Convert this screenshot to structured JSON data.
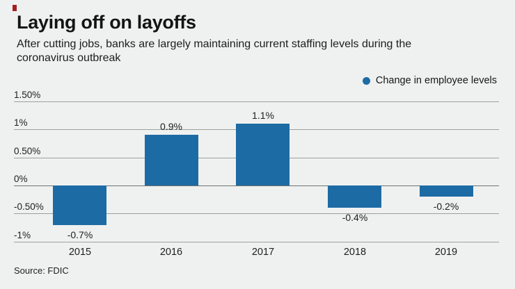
{
  "accent_color": "#a51d20",
  "header": {
    "title": "Laying off on layoffs",
    "subtitle": "After cutting jobs, banks are largely maintaining current staffing levels during the coronavirus outbreak",
    "subtitle_lines": [
      "After cutting jobs, banks are largely maintaining current staffing levels during the",
      "coronavirus outbreak"
    ]
  },
  "legend": {
    "label": "Change in employee levels",
    "marker_color": "#1d6ba5"
  },
  "chart_data": {
    "type": "bar",
    "title": "Laying off on layoffs",
    "categories": [
      "2015",
      "2016",
      "2017",
      "2018",
      "2019"
    ],
    "values": [
      -0.7,
      0.9,
      1.1,
      -0.4,
      -0.2
    ],
    "value_labels": [
      "-0.7%",
      "0.9%",
      "1.1%",
      "-0.4%",
      "-0.2%"
    ],
    "series_name": "Change in employee levels",
    "bar_color": "#1d6ba5",
    "xlabel": "",
    "ylabel": "",
    "y_axis": {
      "ticks": [
        1.5,
        1.0,
        0.5,
        0,
        -0.5,
        -1.0
      ],
      "tick_labels": [
        "1.50%",
        "1%",
        "0.50%",
        "0%",
        "-0.50%",
        "-1%"
      ],
      "ylim": [
        -1.0,
        1.5
      ]
    },
    "grid": true,
    "legend_position": "top-right"
  },
  "footer": {
    "source": "Source: FDIC"
  }
}
